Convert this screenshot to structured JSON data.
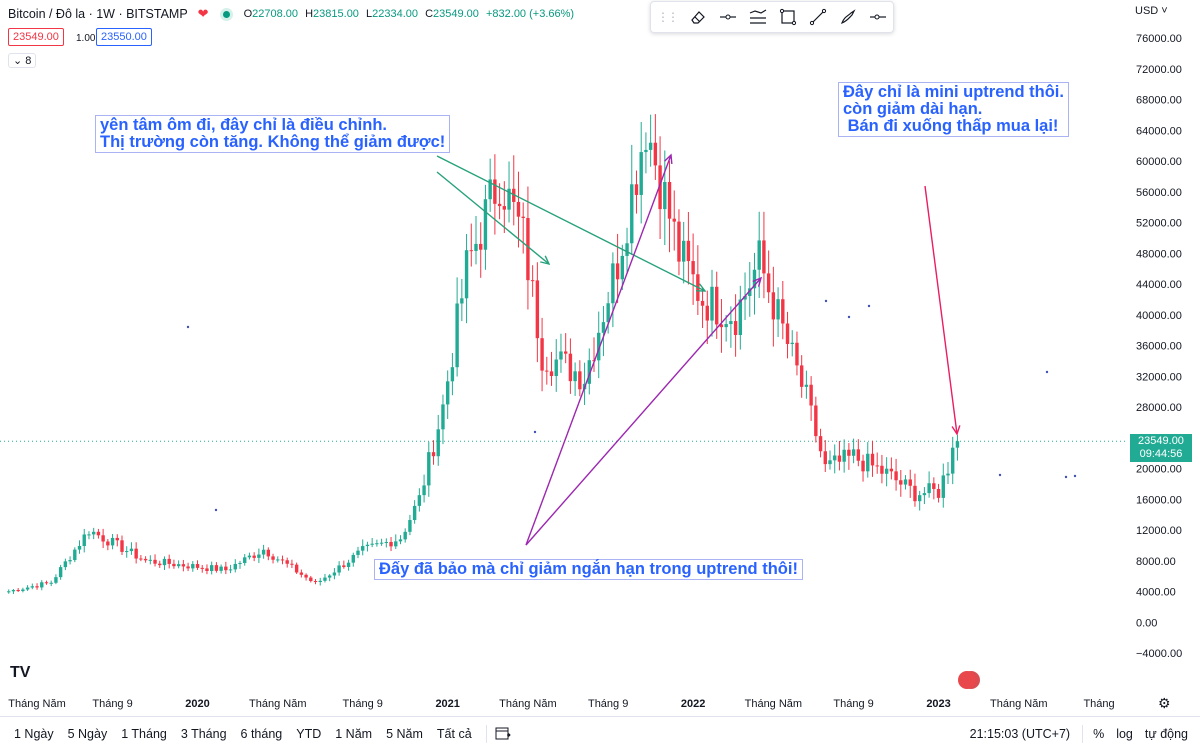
{
  "header": {
    "symbol": "Bitcoin / Đô la · 1W · BITSTAMP",
    "ohlc": [
      {
        "k": "O",
        "v": "22708.00"
      },
      {
        "k": "H",
        "v": "23815.00"
      },
      {
        "k": "L",
        "v": "22334.00"
      },
      {
        "k": "C",
        "v": "23549.00"
      }
    ],
    "change": "+832.00 (+3.66%)",
    "sell_price": "23549.00",
    "spread": "1.00",
    "buy_price": "23550.00",
    "indicators_count": "8",
    "currency": "USD"
  },
  "toolbar": {
    "icons": [
      "grip-icon",
      "eraser-icon",
      "line-icon",
      "path-icon",
      "rectangle-icon",
      "trendline-icon",
      "brush-icon",
      "horizontal-ray-icon"
    ]
  },
  "annotations": {
    "a1": "yên tâm ôm đi, đây chỉ là điều chỉnh.\nThị trường còn tăng. Không thể giảm được!",
    "a2": "Đấy đã bảo mà chỉ giảm ngắn hạn trong uptrend thôi!",
    "a3": "Đây chỉ là mini uptrend thôi.\ncòn giảm dài hạn.\n Bán đi xuống thấp mua lại!"
  },
  "price_label": {
    "price": "23549.00",
    "countdown": "09:44:56"
  },
  "colors": {
    "up": "#22ab94",
    "down": "#f23645",
    "green_arrow": "#26a17b",
    "purple_arrow": "#9c27b0",
    "red_arrow": "#e91e63",
    "text_blue": "#2962ff"
  },
  "bottombar": {
    "ranges": [
      "1 Ngày",
      "5 Ngày",
      "1 Tháng",
      "3 Tháng",
      "6 tháng",
      "YTD",
      "1 Năm",
      "5 Năm",
      "Tất cả"
    ],
    "time": "21:15:03 (UTC+7)",
    "percent": "%",
    "log": "log",
    "auto": "tự động"
  },
  "chart_data": {
    "type": "candlestick",
    "symbol": "Bitcoin / Đô la",
    "interval": "1W",
    "exchange": "BITSTAMP",
    "currency": "USD",
    "ylim": [
      -4000,
      76000
    ],
    "y_ticks": [
      76000,
      72000,
      68000,
      64000,
      60000,
      56000,
      52000,
      48000,
      44000,
      40000,
      36000,
      32000,
      28000,
      24000,
      20000,
      16000,
      12000,
      8000,
      4000,
      0,
      -4000
    ],
    "y_tick_labels": [
      "76000.00",
      "72000.00",
      "68000.00",
      "64000.00",
      "60000.00",
      "56000.00",
      "52000.00",
      "48000.00",
      "44000.00",
      "40000.00",
      "36000.00",
      "32000.00",
      "28000.00",
      "24000.00",
      "20000.00",
      "16000.00",
      "12000.00",
      "8000.00",
      "4000.00",
      "0.00",
      "−4000.00"
    ],
    "x_ticks": [
      {
        "label": "Tháng Năm",
        "i": 7,
        "bold": false
      },
      {
        "label": "Tháng 9",
        "i": 23,
        "bold": false
      },
      {
        "label": "2020",
        "i": 41,
        "bold": true
      },
      {
        "label": "Tháng Năm",
        "i": 58,
        "bold": false
      },
      {
        "label": "Tháng 9",
        "i": 76,
        "bold": false
      },
      {
        "label": "2021",
        "i": 94,
        "bold": true
      },
      {
        "label": "Tháng Năm",
        "i": 111,
        "bold": false
      },
      {
        "label": "Tháng 9",
        "i": 128,
        "bold": false
      },
      {
        "label": "2022",
        "i": 146,
        "bold": true
      },
      {
        "label": "Tháng Năm",
        "i": 163,
        "bold": false
      },
      {
        "label": "Tháng 9",
        "i": 180,
        "bold": false
      },
      {
        "label": "2023",
        "i": 198,
        "bold": true
      },
      {
        "label": "Tháng Năm",
        "i": 215,
        "bold": false
      },
      {
        "label": "Tháng",
        "i": 232,
        "bold": false
      }
    ],
    "last_price": 23549,
    "key_closes": [
      {
        "i": 0,
        "close": 3900
      },
      {
        "i": 10,
        "close": 5200
      },
      {
        "i": 18,
        "close": 12000
      },
      {
        "i": 30,
        "close": 8000
      },
      {
        "i": 47,
        "close": 6800
      },
      {
        "i": 55,
        "close": 9500
      },
      {
        "i": 66,
        "close": 5000
      },
      {
        "i": 76,
        "close": 9300
      },
      {
        "i": 84,
        "close": 11000
      },
      {
        "i": 88,
        "close": 16000
      },
      {
        "i": 93,
        "close": 28000
      },
      {
        "i": 98,
        "close": 46000
      },
      {
        "i": 105,
        "close": 58000
      },
      {
        "i": 110,
        "close": 50000
      },
      {
        "i": 114,
        "close": 35000
      },
      {
        "i": 123,
        "close": 32000
      },
      {
        "i": 130,
        "close": 47000
      },
      {
        "i": 136,
        "close": 65000
      },
      {
        "i": 143,
        "close": 48000
      },
      {
        "i": 148,
        "close": 42000
      },
      {
        "i": 155,
        "close": 40000
      },
      {
        "i": 160,
        "close": 47000
      },
      {
        "i": 165,
        "close": 38000
      },
      {
        "i": 170,
        "close": 29000
      },
      {
        "i": 174,
        "close": 20000
      },
      {
        "i": 180,
        "close": 21500
      },
      {
        "i": 187,
        "close": 19300
      },
      {
        "i": 193,
        "close": 16800
      },
      {
        "i": 198,
        "close": 17000
      },
      {
        "i": 202,
        "close": 23549
      }
    ]
  }
}
